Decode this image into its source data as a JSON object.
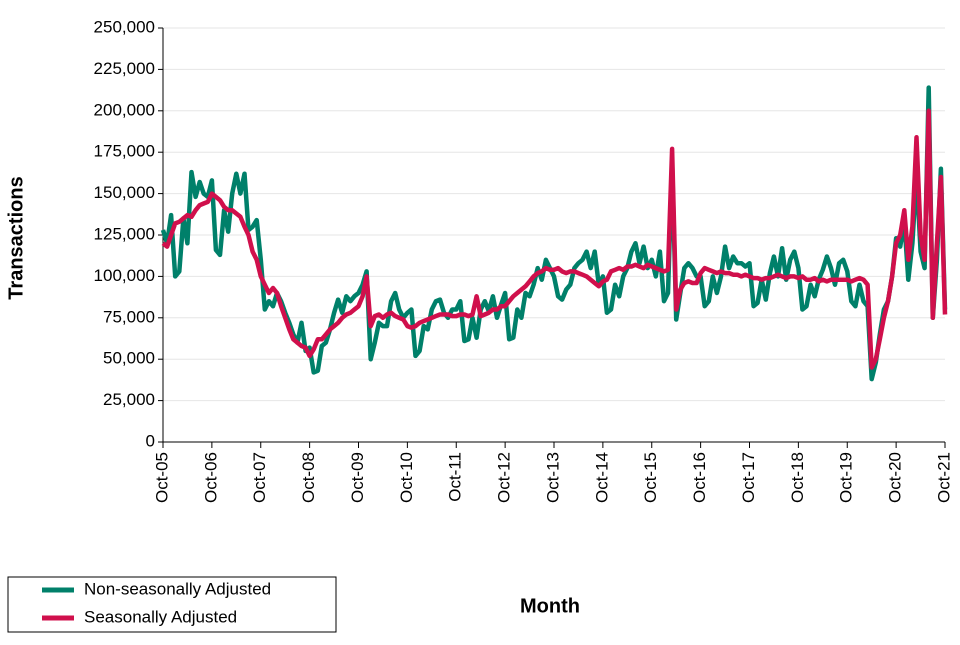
{
  "chart_data": {
    "type": "line",
    "x_label": "Month",
    "y_label": "Transactions",
    "categories": [
      "Oct-05",
      null,
      null,
      null,
      null,
      null,
      null,
      null,
      null,
      null,
      null,
      null,
      "Oct-06",
      null,
      null,
      null,
      null,
      null,
      null,
      null,
      null,
      null,
      null,
      null,
      "Oct-07",
      null,
      null,
      null,
      null,
      null,
      null,
      null,
      null,
      null,
      null,
      null,
      "Oct-08",
      null,
      null,
      null,
      null,
      null,
      null,
      null,
      null,
      null,
      null,
      null,
      "Oct-09",
      null,
      null,
      null,
      null,
      null,
      null,
      null,
      null,
      null,
      null,
      null,
      "Oct-10",
      null,
      null,
      null,
      null,
      null,
      null,
      null,
      null,
      null,
      null,
      null,
      "Oct-11",
      null,
      null,
      null,
      null,
      null,
      null,
      null,
      null,
      null,
      null,
      null,
      "Oct-12",
      null,
      null,
      null,
      null,
      null,
      null,
      null,
      null,
      null,
      null,
      null,
      "Oct-13",
      null,
      null,
      null,
      null,
      null,
      null,
      null,
      null,
      null,
      null,
      null,
      "Oct-14",
      null,
      null,
      null,
      null,
      null,
      null,
      null,
      null,
      null,
      null,
      null,
      "Oct-15",
      null,
      null,
      null,
      null,
      null,
      null,
      null,
      null,
      null,
      null,
      null,
      "Oct-16",
      null,
      null,
      null,
      null,
      null,
      null,
      null,
      null,
      null,
      null,
      null,
      "Oct-17",
      null,
      null,
      null,
      null,
      null,
      null,
      null,
      null,
      null,
      null,
      null,
      "Oct-18",
      null,
      null,
      null,
      null,
      null,
      null,
      null,
      null,
      null,
      null,
      null,
      "Oct-19",
      null,
      null,
      null,
      null,
      null,
      null,
      null,
      null,
      null,
      null,
      null,
      "Oct-20",
      null,
      null,
      null,
      null,
      null,
      null,
      null,
      null,
      null,
      null,
      null,
      "Oct-21"
    ],
    "series": [
      {
        "name": "Non-seasonally Adjusted",
        "color": "#00806a",
        "values": [
          128000,
          120000,
          137000,
          100000,
          103000,
          135000,
          120000,
          163000,
          148000,
          157000,
          150000,
          148000,
          158000,
          116000,
          113000,
          140000,
          127000,
          150000,
          162000,
          150000,
          162000,
          128000,
          130000,
          134000,
          110000,
          80000,
          85000,
          82000,
          90000,
          85000,
          78000,
          72000,
          65000,
          60000,
          72000,
          55000,
          57000,
          42000,
          43000,
          58000,
          60000,
          68000,
          78000,
          86000,
          78000,
          88000,
          85000,
          88000,
          90000,
          95000,
          103000,
          50000,
          60000,
          72000,
          70000,
          70000,
          85000,
          90000,
          80000,
          75000,
          78000,
          80000,
          52000,
          55000,
          70000,
          68000,
          80000,
          85000,
          86000,
          78000,
          75000,
          80000,
          80000,
          85000,
          61000,
          62000,
          75000,
          63000,
          80000,
          85000,
          79000,
          88000,
          75000,
          83000,
          90000,
          62000,
          63000,
          80000,
          75000,
          90000,
          88000,
          95000,
          105000,
          98000,
          110000,
          105000,
          100000,
          88000,
          86000,
          92000,
          95000,
          105000,
          108000,
          110000,
          115000,
          105000,
          115000,
          95000,
          100000,
          78000,
          80000,
          95000,
          88000,
          100000,
          105000,
          115000,
          120000,
          108000,
          118000,
          105000,
          110000,
          100000,
          115000,
          85000,
          90000,
          170000,
          74000,
          90000,
          105000,
          108000,
          105000,
          100000,
          100000,
          82000,
          85000,
          100000,
          90000,
          100000,
          118000,
          105000,
          112000,
          108000,
          108000,
          106000,
          108000,
          82000,
          84000,
          98000,
          86000,
          102000,
          112000,
          100000,
          117000,
          98000,
          110000,
          115000,
          105000,
          80000,
          82000,
          95000,
          88000,
          98000,
          104000,
          112000,
          105000,
          95000,
          108000,
          110000,
          103000,
          85000,
          82000,
          95000,
          85000,
          82000,
          38000,
          48000,
          65000,
          80000,
          85000,
          100000,
          123000,
          118000,
          133000,
          98000,
          120000,
          162000,
          115000,
          105000,
          214000,
          75000,
          110000,
          165000,
          80000
        ]
      },
      {
        "name": "Seasonally Adjusted",
        "color": "#d0104c",
        "values": [
          120000,
          118000,
          125000,
          132000,
          133000,
          135000,
          137000,
          136000,
          140000,
          143000,
          144000,
          145000,
          150000,
          148000,
          146000,
          142000,
          140000,
          140000,
          138000,
          136000,
          130000,
          125000,
          115000,
          110000,
          100000,
          95000,
          90000,
          93000,
          90000,
          82000,
          75000,
          68000,
          62000,
          60000,
          58000,
          57000,
          52000,
          56000,
          62000,
          62000,
          65000,
          68000,
          70000,
          72000,
          75000,
          77000,
          78000,
          80000,
          82000,
          88000,
          100000,
          70000,
          76000,
          77000,
          75000,
          77000,
          78000,
          76000,
          75000,
          74000,
          70000,
          69000,
          70000,
          72000,
          73000,
          74000,
          75000,
          76000,
          77000,
          77000,
          77000,
          76000,
          76000,
          77000,
          77000,
          76000,
          77000,
          88000,
          76000,
          77000,
          78000,
          80000,
          80000,
          82000,
          82000,
          85000,
          88000,
          90000,
          92000,
          94000,
          97000,
          100000,
          102000,
          103000,
          105000,
          104000,
          104000,
          105000,
          103000,
          102000,
          103000,
          103000,
          102000,
          101000,
          100000,
          98000,
          96000,
          94000,
          97000,
          98000,
          103000,
          104000,
          105000,
          104000,
          106000,
          106000,
          107000,
          106000,
          105000,
          107000,
          106000,
          105000,
          104000,
          103000,
          104000,
          177000,
          80000,
          92000,
          96000,
          97000,
          96000,
          96000,
          102000,
          105000,
          104000,
          103000,
          102000,
          103000,
          102000,
          102000,
          101000,
          101000,
          100000,
          101000,
          100000,
          99000,
          99000,
          98000,
          99000,
          99000,
          100000,
          101000,
          100000,
          99000,
          100000,
          100000,
          99000,
          100000,
          98000,
          98000,
          99000,
          97000,
          98000,
          97000,
          98000,
          98000,
          98000,
          98000,
          98000,
          97000,
          98000,
          99000,
          98000,
          95000,
          45000,
          50000,
          62000,
          75000,
          85000,
          100000,
          120000,
          125000,
          140000,
          110000,
          130000,
          184000,
          125000,
          110000,
          200000,
          75000,
          120000,
          160000,
          77000
        ]
      }
    ],
    "ylim": [
      0,
      250000
    ],
    "yticks": [
      0,
      {
        "value": 25000,
        "label": "25,000"
      },
      {
        "value": 50000,
        "label": "50,000"
      },
      {
        "value": 75000,
        "label": "75,000"
      },
      {
        "value": 100000,
        "label": "100,000"
      },
      {
        "value": 125000,
        "label": "125,000"
      },
      {
        "value": 150000,
        "label": "150,000"
      },
      {
        "value": 175000,
        "label": "175,000"
      },
      {
        "value": 200000,
        "label": "200,000"
      },
      {
        "value": 225000,
        "label": "225,000"
      },
      {
        "value": 250000,
        "label": "250,000"
      }
    ],
    "grid": true,
    "legend": "bottom-left"
  }
}
